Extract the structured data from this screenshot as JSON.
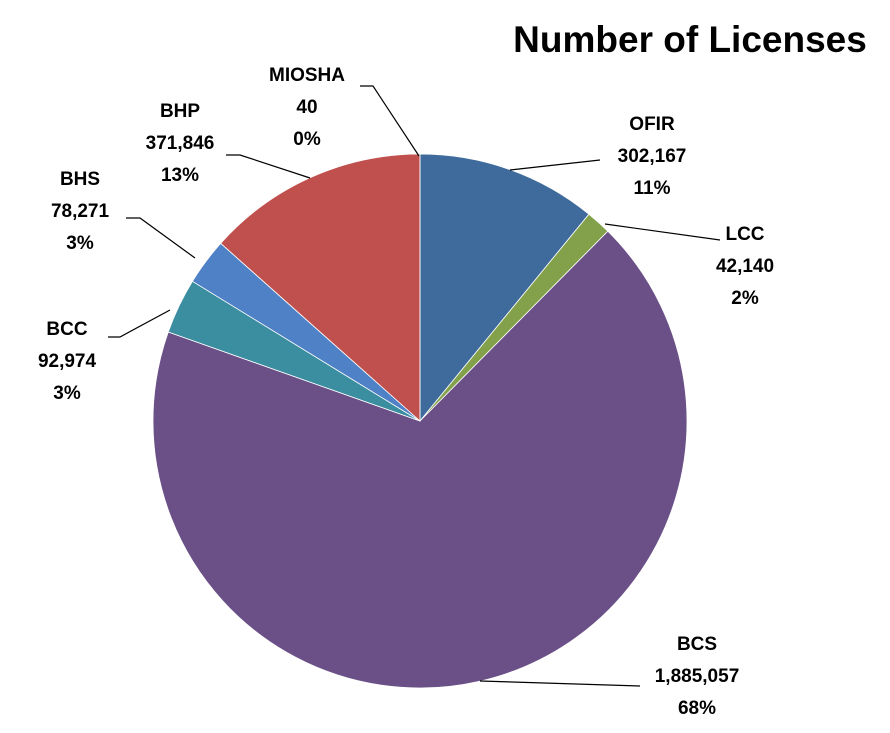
{
  "chart_data": {
    "type": "pie",
    "title": "Number of Licenses",
    "categories": [
      "OFIR",
      "LCC",
      "BCS",
      "BCC",
      "BHS",
      "BHP",
      "MIOSHA"
    ],
    "values": [
      302167,
      42140,
      1885057,
      92974,
      78271,
      371846,
      40
    ],
    "value_labels": [
      "302,167",
      "42,140",
      "1,885,057",
      "92,974",
      "78,271",
      "371,846",
      "40"
    ],
    "percent_labels": [
      "11%",
      "2%",
      "68%",
      "3%",
      "3%",
      "13%",
      "0%"
    ],
    "colors": [
      "#3f6b9c",
      "#82a14a",
      "#6a5087",
      "#3a8ea0",
      "#4f81c6",
      "#c0504d",
      "#7f7f7f"
    ]
  }
}
